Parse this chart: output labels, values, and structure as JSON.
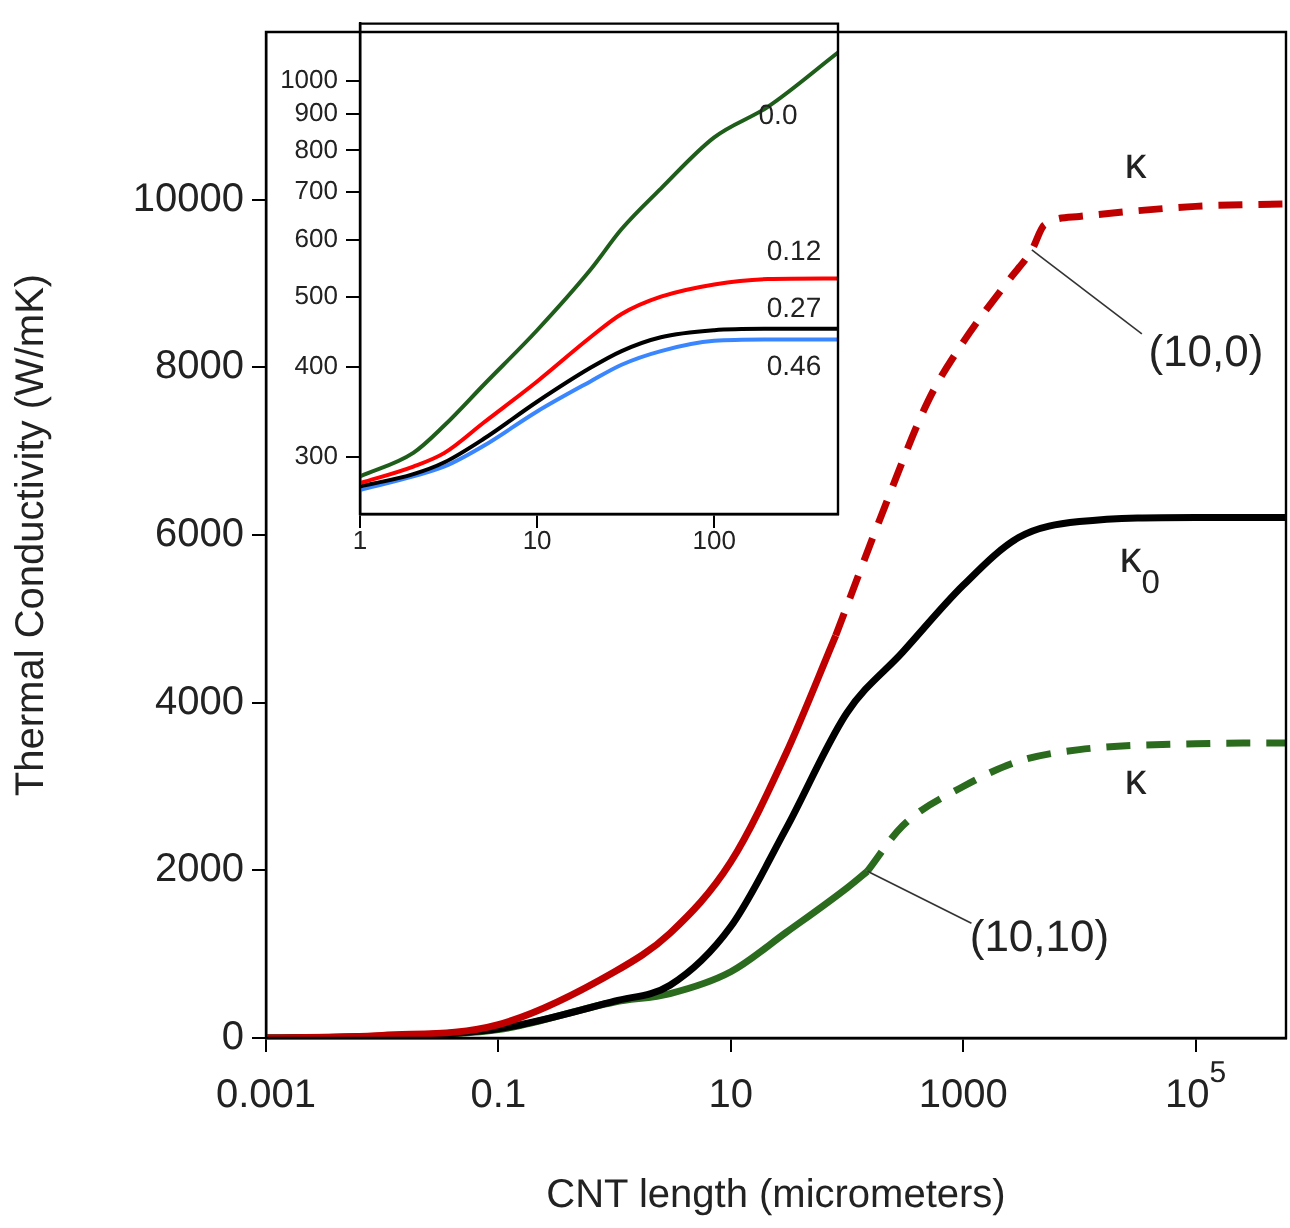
{
  "chart_data": [
    {
      "type": "line",
      "xlabel": "CNT length (micrometers)",
      "ylabel": "Thermal Conductivity (W/mK)",
      "log": "x",
      "xlim": [
        0.001,
        600000
      ],
      "ylim": [
        0,
        12000
      ],
      "xticks": [
        0.001,
        0.1,
        10,
        1000,
        {
          "value": 100000,
          "label": "10$^{5}$"
        }
      ],
      "yticks": [
        0,
        2000,
        4000,
        6000,
        8000,
        10000
      ],
      "series": [
        {
          "color": "#c00000",
          "line_style": "solid",
          "x": [
            0.001,
            0.01,
            0.1,
            1,
            3,
            10,
            30,
            80
          ],
          "values": [
            0,
            30,
            160,
            790,
            1250,
            2100,
            3400,
            4800
          ]
        },
        {
          "color": "#c00000",
          "line_style": "dashed",
          "x": [
            80,
            200,
            500,
            1000,
            2500,
            3900,
            5000,
            10000,
            100000,
            600000
          ],
          "values": [
            4800,
            6250,
            7600,
            8300,
            9050,
            9400,
            9700,
            9800,
            9920,
            9950
          ]
        },
        {
          "color": "#000000",
          "line_style": "solid",
          "x": [
            0.001,
            0.01,
            0.1,
            1,
            3,
            10,
            30,
            100,
            300,
            1000,
            3000,
            10000,
            100000,
            600000
          ],
          "values": [
            0,
            20,
            110,
            440,
            630,
            1330,
            2500,
            3880,
            4600,
            5400,
            5970,
            6160,
            6210,
            6210
          ]
        },
        {
          "color": "#2a6b1e",
          "line_style": "solid",
          "x": [
            0.001,
            0.01,
            0.1,
            1,
            3,
            10,
            30,
            100,
            150
          ],
          "values": [
            0,
            20,
            100,
            430,
            530,
            790,
            1260,
            1790,
            1990
          ]
        },
        {
          "color": "#2a6b1e",
          "line_style": "dashed",
          "x": [
            150,
            300,
            1000,
            3000,
            10000,
            100000,
            600000
          ],
          "values": [
            1990,
            2530,
            3000,
            3300,
            3440,
            3510,
            3520
          ]
        }
      ],
      "annotations": [
        {
          "text": "κ",
          "x": 100000,
          "y": 9920
        },
        {
          "text": "(10,0)",
          "x": 3900,
          "y": 9400
        },
        {
          "text": "κ$_{0}$",
          "x": 100000,
          "y": 6210
        },
        {
          "text": "κ",
          "x": 100000,
          "y": 3510
        },
        {
          "text": "(10,10)",
          "x": 150,
          "y": 1990
        }
      ]
    },
    {
      "type": "line",
      "log": "xy",
      "xlim": [
        1,
        500
      ],
      "ylim": [
        250,
        1200
      ],
      "xticks": [
        1,
        10,
        100
      ],
      "yticks": [
        300,
        400,
        500,
        600,
        700,
        800,
        900,
        1000
      ],
      "series": [
        {
          "color": "#1e5e1a",
          "line_style": "solid",
          "x": [
            1,
            2,
            3,
            5,
            10,
            20,
            30,
            50,
            100,
            200,
            500
          ],
          "values": [
            282,
            304,
            332,
            378,
            450,
            546,
            622,
            708,
            834,
            919,
            1094
          ]
        },
        {
          "color": "#ff0000",
          "line_style": "solid",
          "x": [
            1,
            2,
            3,
            5,
            10,
            20,
            30,
            50,
            100,
            200,
            500
          ],
          "values": [
            276,
            291,
            304,
            335,
            382,
            440,
            474,
            501,
            521,
            530,
            531
          ]
        },
        {
          "color": "#000000",
          "line_style": "solid",
          "x": [
            1,
            2,
            3,
            5,
            10,
            20,
            30,
            50,
            100,
            200,
            500
          ],
          "values": [
            273,
            284,
            295,
            318,
            358,
            399,
            421,
            440,
            450,
            452,
            452
          ]
        },
        {
          "color": "#3a86ff",
          "line_style": "solid",
          "x": [
            1,
            2,
            3,
            5,
            10,
            20,
            30,
            50,
            100,
            200,
            500
          ],
          "values": [
            270,
            282,
            291,
            311,
            347,
            382,
            403,
            421,
            435,
            437,
            437
          ]
        }
      ],
      "annotations": [
        {
          "text": "0.0",
          "x": 500,
          "y": 1094
        },
        {
          "text": "0.12",
          "x": 500,
          "y": 531
        },
        {
          "text": "0.27",
          "x": 500,
          "y": 452
        },
        {
          "text": "0.46",
          "x": 500,
          "y": 437
        }
      ]
    }
  ]
}
